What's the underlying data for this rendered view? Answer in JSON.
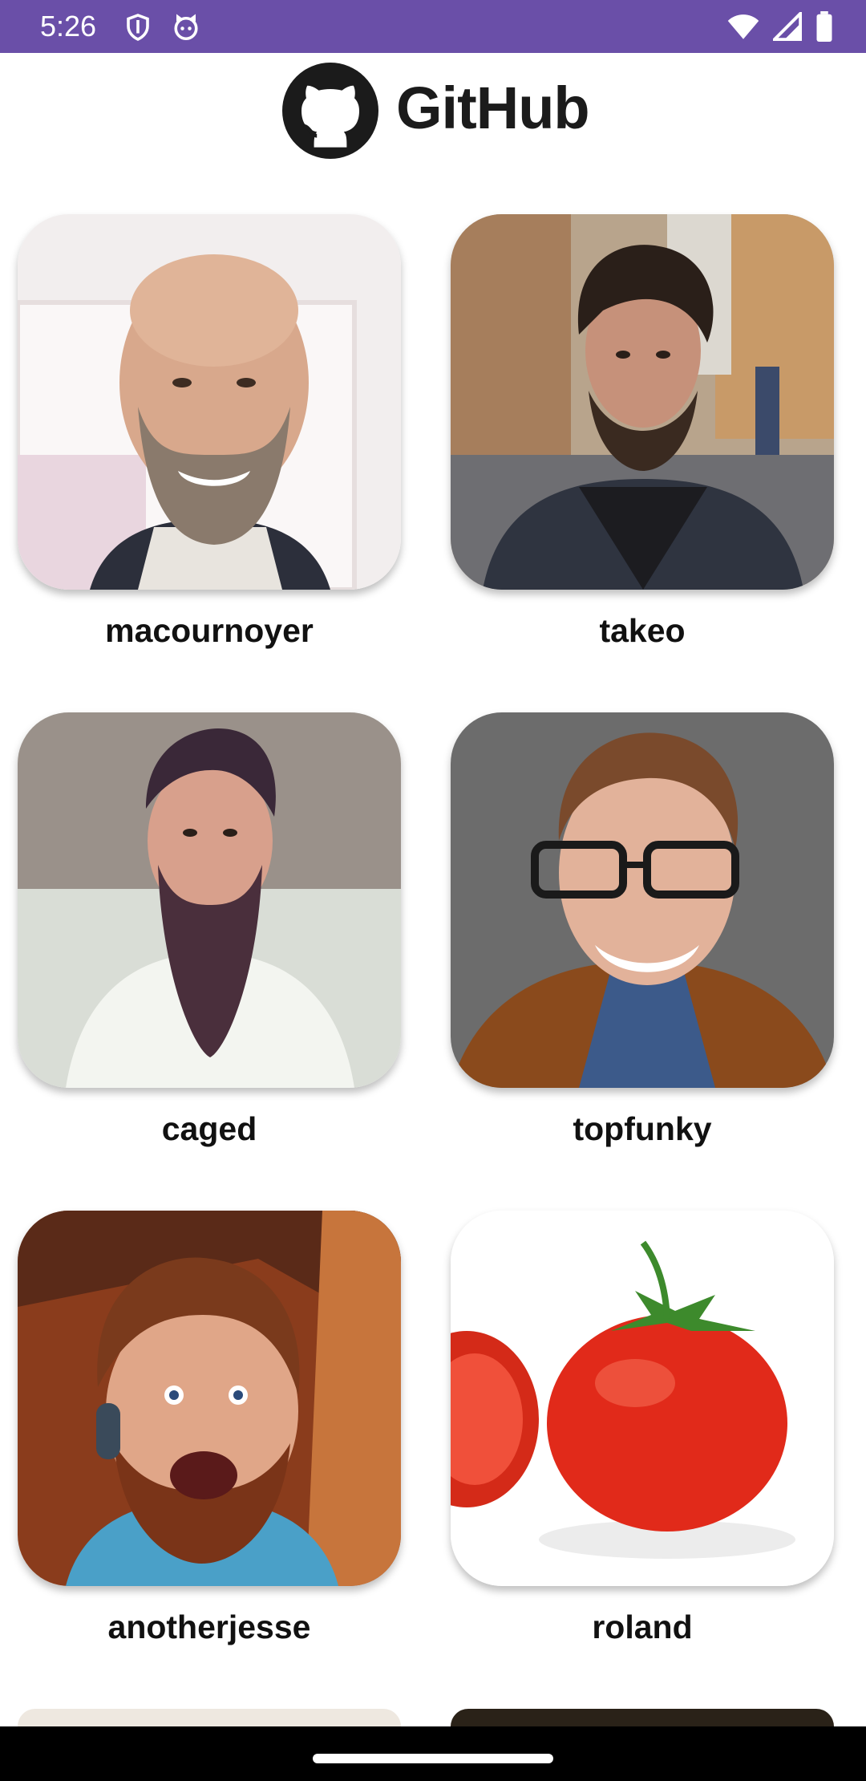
{
  "status_bar": {
    "time": "5:26",
    "icons": [
      "shield-icon",
      "cat-icon",
      "wifi-icon",
      "signal-icon",
      "battery-icon"
    ],
    "color": "#6a4fa8"
  },
  "header": {
    "brand": "GitHub",
    "logo_icon": "github-octocat-icon"
  },
  "users": [
    {
      "username": "macournoyer"
    },
    {
      "username": "takeo"
    },
    {
      "username": "caged"
    },
    {
      "username": "topfunky"
    },
    {
      "username": "anotherjesse"
    },
    {
      "username": "roland"
    }
  ]
}
